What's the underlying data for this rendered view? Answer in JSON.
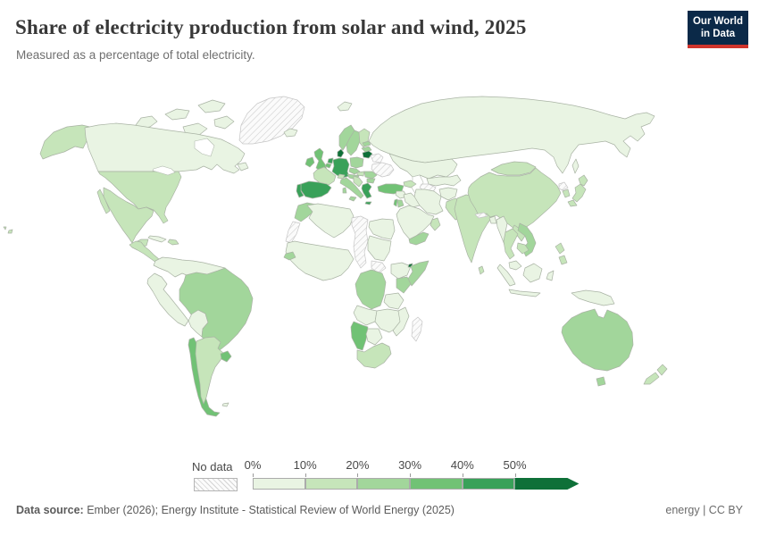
{
  "header": {
    "title": "Share of electricity production from solar and wind, 2025",
    "subtitle": "Measured as a percentage of total electricity."
  },
  "logo": {
    "line1": "Our World",
    "line2": "in Data",
    "bg": "#0b2948",
    "stripe": "#d0342c"
  },
  "legend": {
    "no_data_label": "No data",
    "ticks": [
      "0%",
      "10%",
      "20%",
      "30%",
      "40%",
      "50%"
    ]
  },
  "footer": {
    "source_label": "Data source:",
    "source_text": " Ember (2026); Energy Institute - Statistical Review of World Energy (2025)",
    "right_text": "energy | CC BY"
  },
  "chart_data": {
    "type": "heatmap",
    "subtype": "world-choropleth-map",
    "title": "Share of electricity production from solar and wind, 2025",
    "unit": "% of total electricity",
    "legend_position": "bottom",
    "colors": [
      "#e9f4e3",
      "#c6e5ba",
      "#a2d69b",
      "#71c275",
      "#39a159",
      "#0e7038"
    ],
    "band_labels": [
      "No data",
      "0%-10%",
      "10%-20%",
      "20%-30%",
      "30%-40%",
      "40%-50%",
      "50%+"
    ],
    "border_color": "#a9b3a4",
    "nodata_stroke": "#c6c6c6",
    "countries": {
      "greenland": {
        "name": "Greenland",
        "band": 0
      },
      "arctic-islands": {
        "name": "Canada (Arctic Islands)",
        "band": 1
      },
      "canada": {
        "name": "Canada",
        "band": 1
      },
      "alaska": {
        "name": "United States (Alaska)",
        "band": 2
      },
      "usa": {
        "name": "United States",
        "band": 2
      },
      "hawaii": {
        "name": "United States (Hawaii)",
        "band": 2
      },
      "mexico": {
        "name": "Mexico",
        "band": 2
      },
      "central-america": {
        "name": "Central America",
        "band": 2
      },
      "cuba": {
        "name": "Cuba",
        "band": 1
      },
      "hispaniola": {
        "name": "Hispaniola",
        "band": 2
      },
      "colombia-venezuela": {
        "name": "Colombia, Venezuela & Guyanas",
        "band": 1
      },
      "peru": {
        "name": "Ecuador & Peru",
        "band": 1
      },
      "bolivia-paraguay": {
        "name": "Bolivia & Paraguay",
        "band": 1
      },
      "brazil": {
        "name": "Brazil",
        "band": 3
      },
      "chile": {
        "name": "Chile",
        "band": 4
      },
      "argentina": {
        "name": "Argentina",
        "band": 2
      },
      "uruguay": {
        "name": "Uruguay",
        "band": 4
      },
      "falklands": {
        "name": "Falkland Islands",
        "band": 1
      },
      "iceland": {
        "name": "Iceland",
        "band": 1
      },
      "svalbard": {
        "name": "Svalbard",
        "band": 1
      },
      "norway": {
        "name": "Norway",
        "band": 3
      },
      "sweden": {
        "name": "Sweden",
        "band": 3
      },
      "finland": {
        "name": "Finland",
        "band": 2
      },
      "uk": {
        "name": "United Kingdom",
        "band": 4
      },
      "ireland": {
        "name": "Ireland",
        "band": 4
      },
      "denmark": {
        "name": "Denmark",
        "band": 6
      },
      "netherlands": {
        "name": "Netherlands",
        "band": 5
      },
      "belgium": {
        "name": "Belgium",
        "band": 4
      },
      "germany": {
        "name": "Germany",
        "band": 5
      },
      "france": {
        "name": "France",
        "band": 2
      },
      "spain": {
        "name": "Spain",
        "band": 5
      },
      "portugal": {
        "name": "Portugal",
        "band": 5
      },
      "poland": {
        "name": "Poland",
        "band": 3
      },
      "czechia": {
        "name": "Czechia",
        "band": 3
      },
      "austria": {
        "name": "Austria",
        "band": 3
      },
      "switzerland": {
        "name": "Switzerland",
        "band": 2
      },
      "italy": {
        "name": "Italy",
        "band": 3
      },
      "lithuania": {
        "name": "Lithuania",
        "band": 6
      },
      "latvia": {
        "name": "Latvia",
        "band": 3
      },
      "estonia": {
        "name": "Estonia",
        "band": 3
      },
      "belarus": {
        "name": "Belarus",
        "band": 0
      },
      "ukraine": {
        "name": "Ukraine",
        "band": 0
      },
      "hungary": {
        "name": "Hungary",
        "band": 2
      },
      "romania": {
        "name": "Romania",
        "band": 3
      },
      "bulgaria": {
        "name": "Bulgaria",
        "band": 3
      },
      "balkans": {
        "name": "Western Balkans",
        "band": 2
      },
      "greece": {
        "name": "Greece",
        "band": 5
      },
      "turkey": {
        "name": "Turkey",
        "band": 4
      },
      "russia": {
        "name": "Russia",
        "band": 1
      },
      "kazakhstan": {
        "name": "Kazakhstan",
        "band": 1
      },
      "caucasus": {
        "name": "Caucasus",
        "band": 2
      },
      "central-asia": {
        "name": "Uzbekistan & Kyrgyzstan & Tajikistan",
        "band": 1
      },
      "turkmenistan": {
        "name": "Turkmenistan",
        "band": 0
      },
      "afghanistan": {
        "name": "Afghanistan",
        "band": 1
      },
      "iran": {
        "name": "Iran",
        "band": 1
      },
      "iraq": {
        "name": "Iraq",
        "band": 1
      },
      "syria": {
        "name": "Syria",
        "band": 1
      },
      "israel": {
        "name": "Israel",
        "band": 4
      },
      "jordan": {
        "name": "Jordan",
        "band": 3
      },
      "saudi-arabia": {
        "name": "Saudi Arabia",
        "band": 1
      },
      "yemen": {
        "name": "Yemen",
        "band": 3
      },
      "oman": {
        "name": "Oman",
        "band": 2
      },
      "india": {
        "name": "India",
        "band": 2
      },
      "pakistan": {
        "name": "Pakistan",
        "band": 2
      },
      "sri-lanka": {
        "name": "Sri Lanka",
        "band": 2
      },
      "bangladesh": {
        "name": "Bangladesh",
        "band": 1
      },
      "nepal": {
        "name": "Nepal",
        "band": 0
      },
      "china": {
        "name": "China",
        "band": 2
      },
      "mongolia": {
        "name": "Mongolia",
        "band": 2
      },
      "south-korea": {
        "name": "South Korea",
        "band": 2
      },
      "north-korea": {
        "name": "North Korea",
        "band": 0
      },
      "japan": {
        "name": "Japan",
        "band": 2
      },
      "myanmar": {
        "name": "Myanmar",
        "band": 1
      },
      "thailand": {
        "name": "Thailand",
        "band": 2
      },
      "laos": {
        "name": "Laos",
        "band": 2
      },
      "vietnam": {
        "name": "Vietnam",
        "band": 3
      },
      "cambodia": {
        "name": "Cambodia",
        "band": 2
      },
      "malaysia": {
        "name": "Malaysia",
        "band": 1
      },
      "indonesia": {
        "name": "Indonesia",
        "band": 1
      },
      "philippines": {
        "name": "Philippines",
        "band": 2
      },
      "papua-new-guinea": {
        "name": "Papua New Guinea",
        "band": 1
      },
      "morocco": {
        "name": "Morocco",
        "band": 3
      },
      "western-sahara": {
        "name": "Western Sahara",
        "band": 0
      },
      "algeria": {
        "name": "Algeria",
        "band": 1
      },
      "libya-chad": {
        "name": "Libya & Chad",
        "band": 0
      },
      "egypt": {
        "name": "Egypt",
        "band": 1
      },
      "sudan": {
        "name": "Sudan",
        "band": 1
      },
      "south-sudan": {
        "name": "South Sudan",
        "band": 0
      },
      "west-africa": {
        "name": "West Africa & Sahel",
        "band": 1
      },
      "senegal": {
        "name": "Senegal",
        "band": 3
      },
      "ethiopia": {
        "name": "Ethiopia",
        "band": 1
      },
      "djibouti": {
        "name": "Djibouti",
        "band": 6
      },
      "somalia": {
        "name": "Somalia",
        "band": 3
      },
      "kenya": {
        "name": "Kenya",
        "band": 3
      },
      "drc": {
        "name": "Democratic Republic of Congo",
        "band": 3
      },
      "tanzania": {
        "name": "Tanzania",
        "band": 1
      },
      "angola": {
        "name": "Angola",
        "band": 1
      },
      "zambia-zimbabwe": {
        "name": "Zambia & Zimbabwe",
        "band": 1
      },
      "mozambique": {
        "name": "Mozambique",
        "band": 1
      },
      "namibia": {
        "name": "Namibia",
        "band": 4
      },
      "botswana": {
        "name": "Botswana",
        "band": 1
      },
      "south-africa": {
        "name": "South Africa",
        "band": 2
      },
      "madagascar": {
        "name": "Madagascar",
        "band": 0
      },
      "australia": {
        "name": "Australia",
        "band": 3
      },
      "tasmania": {
        "name": "Australia (Tasmania)",
        "band": 3
      },
      "new-zealand": {
        "name": "New Zealand",
        "band": 2
      }
    }
  }
}
